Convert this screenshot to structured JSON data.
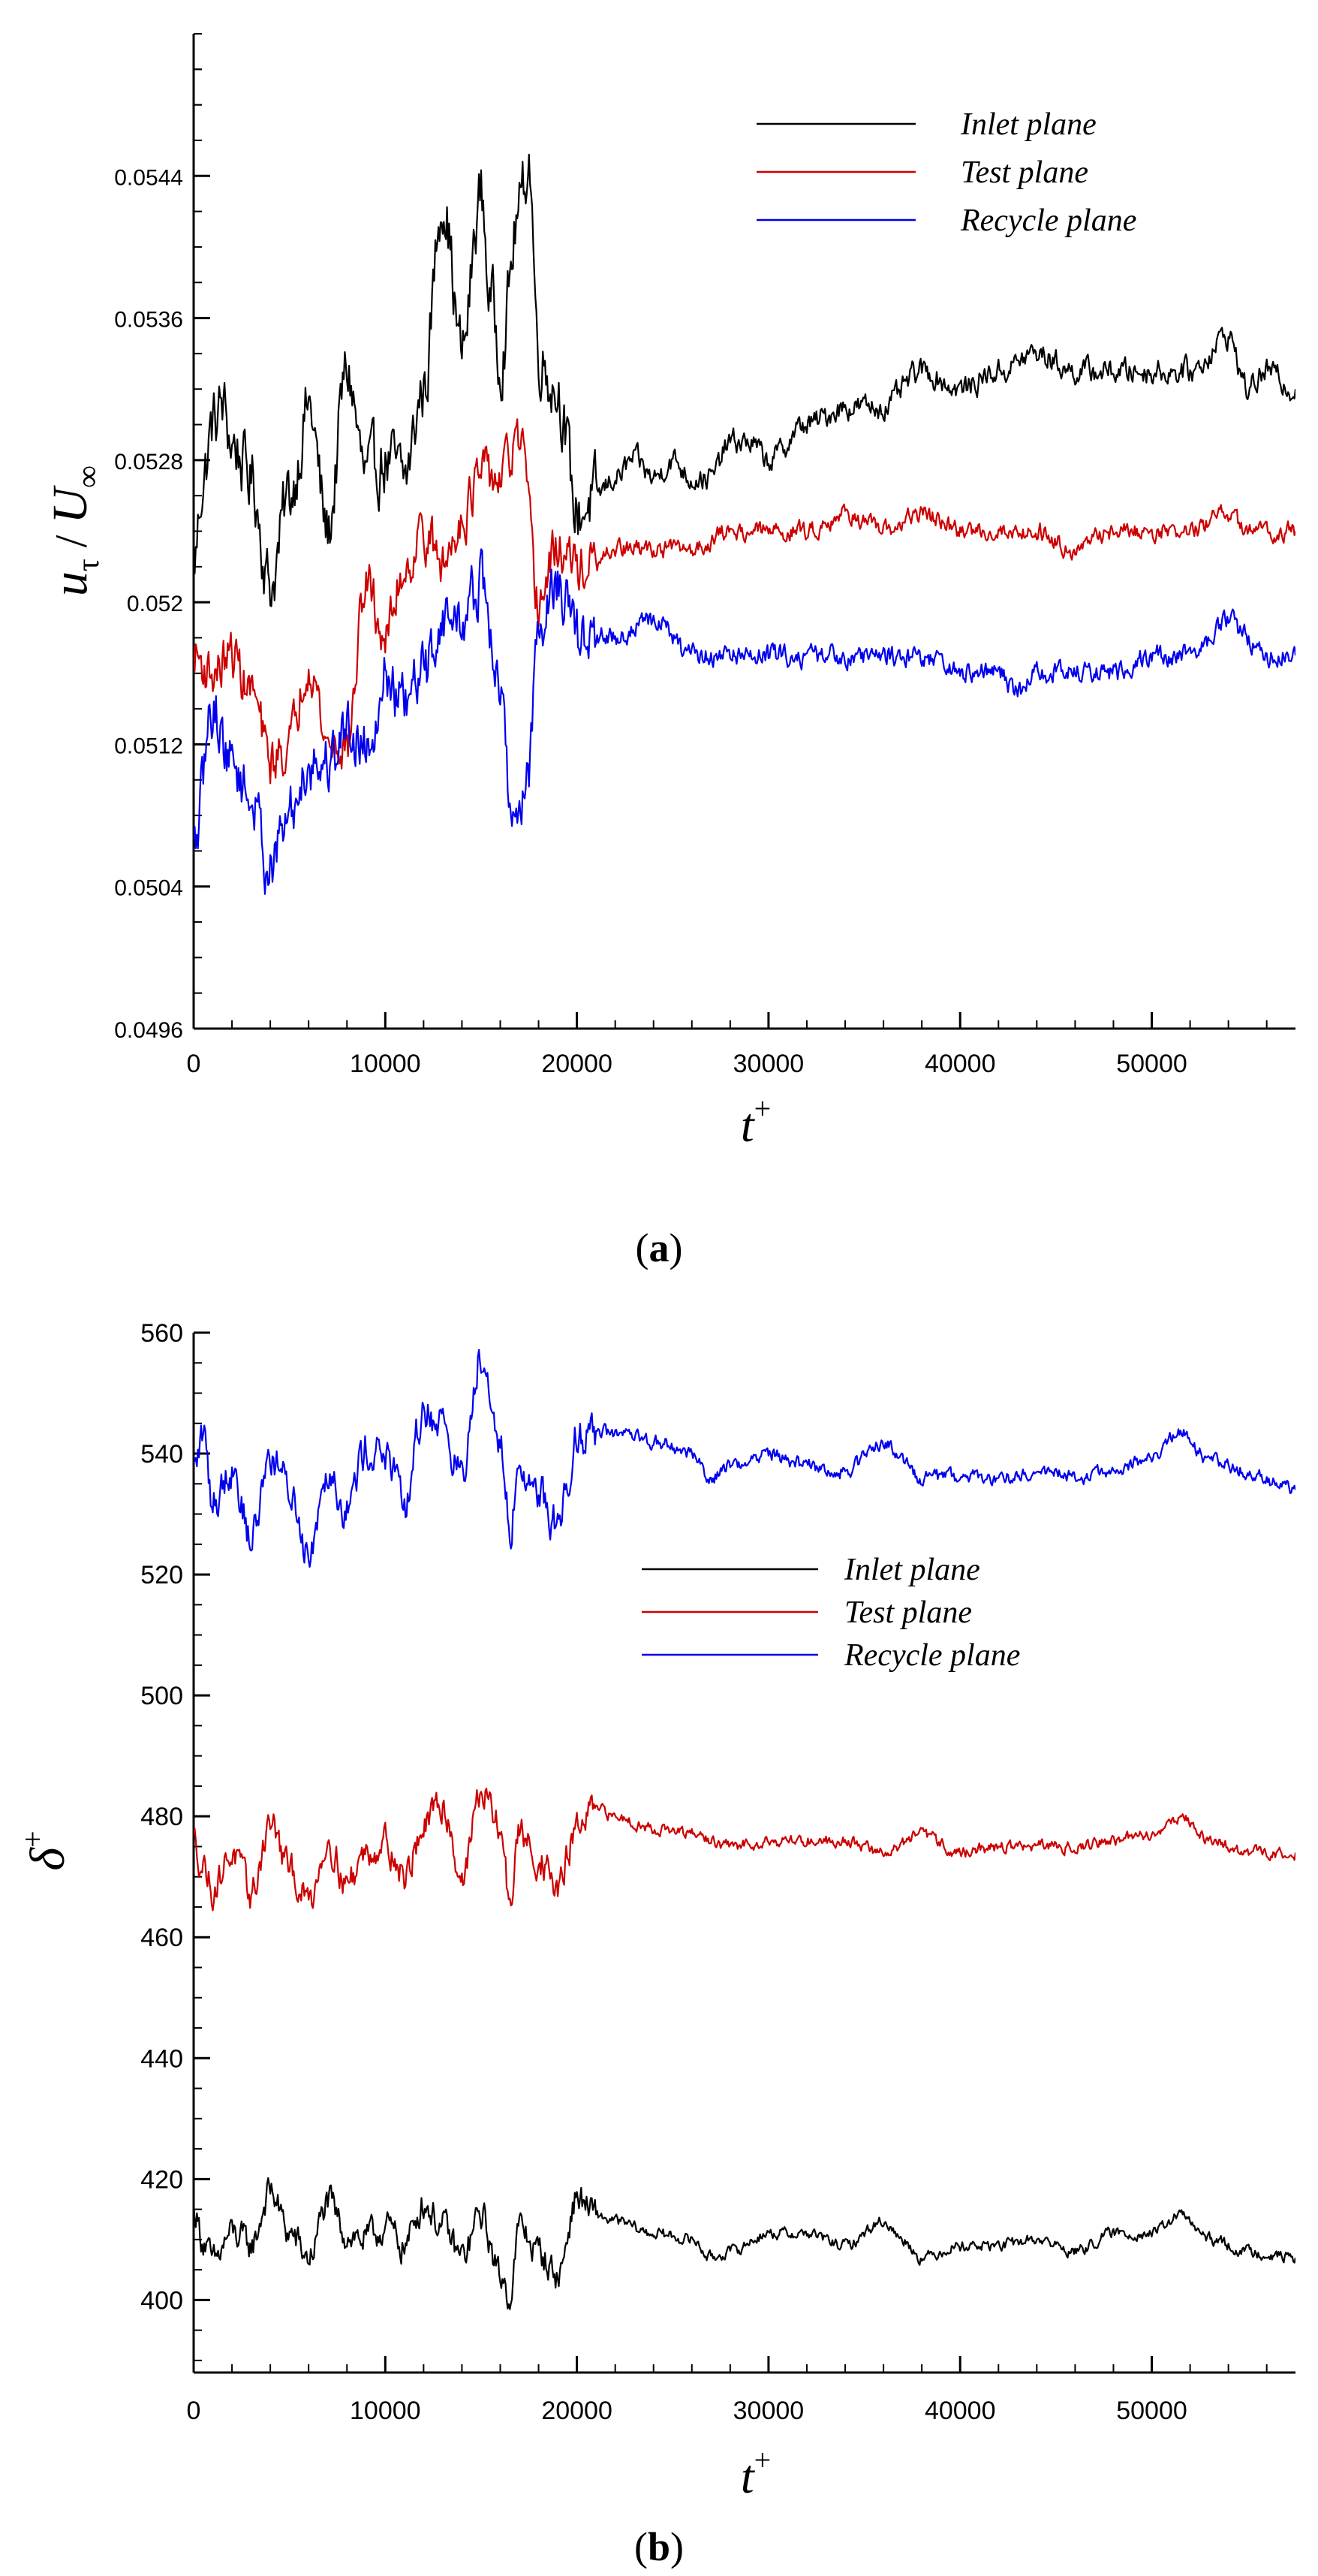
{
  "chart_data": [
    {
      "id": "a",
      "type": "line",
      "caption_letter": "a",
      "xlabel": "t+",
      "ylabel": "u_τ / U_∞",
      "xlim": [
        0,
        57500
      ],
      "ylim": [
        0.0496,
        0.0552
      ],
      "x_ticks": [
        "0",
        "10000",
        "20000",
        "30000",
        "40000",
        "50000"
      ],
      "y_ticks": [
        "0.0496",
        "0.0504",
        "0.0512",
        "0.052",
        "0.0528",
        "0.0536",
        "0.0544"
      ],
      "legend_position": "top-right",
      "series": [
        {
          "name": "Inlet plane",
          "color": "#000000",
          "x": [
            0,
            500,
            1000,
            1500,
            2000,
            3000,
            4000,
            5000,
            6000,
            7000,
            8000,
            9000,
            10000,
            11000,
            12000,
            13000,
            14000,
            15000,
            15500,
            16000,
            17000,
            17500,
            18000,
            19000,
            20000,
            21000,
            22000,
            23000,
            24000,
            25000,
            26000,
            27000,
            28000,
            29000,
            30000,
            32000,
            34000,
            36000,
            38000,
            40000,
            42000,
            44000,
            46000,
            48000,
            50000,
            52000,
            54000,
            55000,
            56000,
            57500
          ],
          "y": [
            0.0522,
            0.0527,
            0.053,
            0.0531,
            0.0529,
            0.0527,
            0.0521,
            0.0526,
            0.0531,
            0.0524,
            0.0533,
            0.0527,
            0.0528,
            0.0527,
            0.0532,
            0.0543,
            0.0534,
            0.0543,
            0.0537,
            0.0534,
            0.0542,
            0.0545,
            0.0534,
            0.0532,
            0.0525,
            0.0526,
            0.0527,
            0.0528,
            0.0527,
            0.0528,
            0.0527,
            0.0527,
            0.0529,
            0.0529,
            0.0528,
            0.053,
            0.0531,
            0.0531,
            0.0533,
            0.0532,
            0.0533,
            0.0534,
            0.0533,
            0.0533,
            0.0533,
            0.0533,
            0.0535,
            0.0532,
            0.0533,
            0.0532
          ]
        },
        {
          "name": "Test plane",
          "color": "#cc0000",
          "x": [
            0,
            1000,
            2000,
            3000,
            4000,
            5000,
            6000,
            7000,
            8000,
            9000,
            10000,
            11000,
            12000,
            13000,
            14000,
            15000,
            16000,
            17000,
            18000,
            19000,
            20000,
            21000,
            22000,
            24000,
            26000,
            28000,
            30000,
            32000,
            34000,
            36000,
            38000,
            40000,
            42000,
            44000,
            46000,
            48000,
            50000,
            52000,
            54000,
            55000,
            56000,
            57500
          ],
          "y": [
            0.0517,
            0.0516,
            0.0517,
            0.0515,
            0.0511,
            0.0512,
            0.0517,
            0.0512,
            0.0512,
            0.0521,
            0.0518,
            0.0522,
            0.0524,
            0.0522,
            0.0525,
            0.0527,
            0.0527,
            0.0529,
            0.052,
            0.0523,
            0.0522,
            0.0522,
            0.0523,
            0.0523,
            0.0523,
            0.0524,
            0.0524,
            0.0524,
            0.0525,
            0.0524,
            0.0525,
            0.0524,
            0.0524,
            0.0524,
            0.0523,
            0.0524,
            0.0524,
            0.0524,
            0.0525,
            0.0524,
            0.0524,
            0.0524
          ]
        },
        {
          "name": "Recycle plane",
          "color": "#0000ee",
          "x": [
            0,
            1000,
            2000,
            3000,
            4000,
            5000,
            6000,
            7000,
            8000,
            9000,
            10000,
            11000,
            12000,
            13000,
            14000,
            15000,
            16000,
            16500,
            17000,
            17500,
            18000,
            19000,
            20000,
            21000,
            22000,
            24000,
            26000,
            28000,
            30000,
            32000,
            34000,
            36000,
            38000,
            40000,
            42000,
            43000,
            44000,
            46000,
            48000,
            50000,
            52000,
            54000,
            55000,
            56000,
            57500
          ],
          "y": [
            0.0506,
            0.0514,
            0.0511,
            0.0509,
            0.0505,
            0.0508,
            0.0511,
            0.0511,
            0.0513,
            0.0512,
            0.0516,
            0.0514,
            0.0516,
            0.0519,
            0.0519,
            0.0521,
            0.0515,
            0.0509,
            0.0508,
            0.0511,
            0.0519,
            0.0521,
            0.0518,
            0.0518,
            0.0518,
            0.0519,
            0.0517,
            0.0517,
            0.0517,
            0.0517,
            0.0517,
            0.0517,
            0.0517,
            0.0516,
            0.0516,
            0.0515,
            0.0516,
            0.0516,
            0.0516,
            0.0517,
            0.0517,
            0.0519,
            0.0518,
            0.0517,
            0.0517
          ]
        }
      ]
    },
    {
      "id": "b",
      "type": "line",
      "caption_letter": "b",
      "xlabel": "t+",
      "ylabel": "δ+",
      "xlim": [
        0,
        57500
      ],
      "ylim": [
        388,
        560
      ],
      "x_ticks": [
        "0",
        "10000",
        "20000",
        "30000",
        "40000",
        "50000"
      ],
      "y_ticks": [
        "400",
        "420",
        "440",
        "460",
        "480",
        "500",
        "520",
        "540",
        "560"
      ],
      "legend_position": "center",
      "series": [
        {
          "name": "Inlet plane",
          "color": "#000000",
          "x": [
            0,
            500,
            1000,
            2000,
            3000,
            4000,
            5000,
            6000,
            7000,
            8000,
            9000,
            10000,
            11000,
            12000,
            13000,
            14000,
            15000,
            16000,
            16500,
            17000,
            18000,
            19000,
            20000,
            21000,
            22000,
            24000,
            26000,
            27000,
            28000,
            30000,
            32000,
            34000,
            36000,
            37000,
            38000,
            40000,
            42000,
            44000,
            46000,
            48000,
            50000,
            51500,
            53000,
            55000,
            57500
          ],
          "y": [
            415,
            410,
            406,
            411,
            409,
            418,
            411,
            407,
            416,
            411,
            410,
            412,
            409,
            416,
            412,
            407,
            414,
            404,
            401,
            412,
            408,
            404,
            417,
            414,
            413,
            411,
            410,
            407,
            408,
            411,
            411,
            409,
            413,
            410,
            407,
            409,
            409,
            410,
            408,
            411,
            411,
            414,
            410,
            408,
            407
          ]
        },
        {
          "name": "Test plane",
          "color": "#cc0000",
          "x": [
            0,
            500,
            1000,
            2000,
            3000,
            4000,
            5000,
            6000,
            7000,
            8000,
            9000,
            10000,
            11000,
            12000,
            13000,
            14000,
            15000,
            16000,
            16500,
            17000,
            18000,
            19000,
            20000,
            21000,
            22000,
            24000,
            26000,
            28000,
            30000,
            32000,
            34000,
            36000,
            38000,
            40000,
            42000,
            44000,
            46000,
            48000,
            50000,
            51500,
            53000,
            55000,
            57500
          ],
          "y": [
            476,
            472,
            468,
            474,
            467,
            479,
            471,
            466,
            476,
            469,
            474,
            476,
            470,
            478,
            482,
            470,
            484,
            478,
            466,
            477,
            473,
            468,
            478,
            481,
            480,
            478,
            477,
            475,
            476,
            476,
            476,
            474,
            477,
            474,
            475,
            475,
            475,
            476,
            477,
            480,
            476,
            474,
            474
          ]
        },
        {
          "name": "Recycle plane",
          "color": "#0000ee",
          "x": [
            0,
            500,
            1000,
            2000,
            3000,
            4000,
            5000,
            6000,
            7000,
            8000,
            9000,
            10000,
            11000,
            12000,
            13000,
            14000,
            15000,
            15500,
            16000,
            16500,
            17000,
            18000,
            19000,
            20000,
            21000,
            22000,
            24000,
            26000,
            27000,
            28000,
            30000,
            32000,
            34000,
            36000,
            37000,
            38000,
            40000,
            42000,
            44000,
            46000,
            48000,
            50000,
            51500,
            53000,
            55000,
            57500
          ],
          "y": [
            537,
            543,
            532,
            538,
            526,
            540,
            534,
            524,
            538,
            531,
            541,
            540,
            531,
            547,
            545,
            536,
            557,
            552,
            540,
            528,
            537,
            534,
            528,
            543,
            544,
            543,
            542,
            540,
            536,
            538,
            540,
            538,
            537,
            542,
            539,
            536,
            536,
            536,
            537,
            536,
            537,
            539,
            544,
            539,
            537,
            534
          ]
        }
      ]
    }
  ]
}
